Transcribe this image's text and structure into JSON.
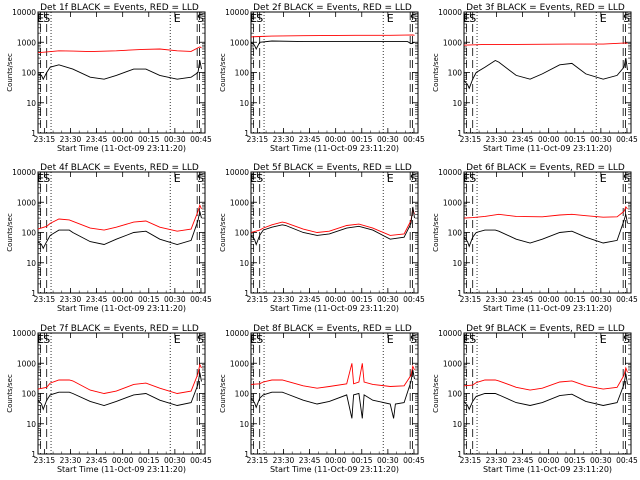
{
  "chart_data": {
    "type": "line",
    "ylabel": "Counts/sec",
    "xlabel": "Start Time (11-Oct-09 23:11:20)",
    "x_tick_labels": [
      "23:15",
      "23:30",
      "23:45",
      "00:00",
      "00:15",
      "00:30",
      "00:45"
    ],
    "x_tick_minutes": [
      3.67,
      18.67,
      33.67,
      48.67,
      63.67,
      78.67,
      93.67
    ],
    "y_scale": "log",
    "ylim": [
      1,
      10000
    ],
    "y_tick_labels": [
      "1",
      "10",
      "100",
      "1000",
      "10000"
    ],
    "series_colors": {
      "events": "#000000",
      "lld": "#ff0000"
    },
    "panels": [
      {
        "title": "Det 1f BLACK = Events, RED = LLD",
        "markers": [
          "E",
          "S",
          "E",
          "S"
        ],
        "events": [
          [
            0,
            90
          ],
          [
            2,
            80
          ],
          [
            3,
            60
          ],
          [
            5,
            100
          ],
          [
            7,
            150
          ],
          [
            12,
            180
          ],
          [
            20,
            130
          ],
          [
            30,
            70
          ],
          [
            38,
            60
          ],
          [
            45,
            80
          ],
          [
            55,
            130
          ],
          [
            62,
            130
          ],
          [
            70,
            80
          ],
          [
            80,
            60
          ],
          [
            88,
            70
          ],
          [
            92,
            100
          ],
          [
            93,
            250
          ],
          [
            94,
            130
          ]
        ],
        "lld": [
          [
            0,
            450
          ],
          [
            5,
            480
          ],
          [
            12,
            520
          ],
          [
            20,
            510
          ],
          [
            30,
            490
          ],
          [
            45,
            520
          ],
          [
            60,
            580
          ],
          [
            70,
            600
          ],
          [
            80,
            520
          ],
          [
            88,
            500
          ],
          [
            93,
            700
          ],
          [
            94,
            650
          ]
        ]
      },
      {
        "title": "Det 2f BLACK = Events, RED = LLD",
        "markers": [
          "E",
          "S",
          "E",
          "S"
        ],
        "events": [
          [
            0,
            1000
          ],
          [
            2,
            800
          ],
          [
            3,
            600
          ],
          [
            5,
            1000
          ],
          [
            12,
            1100
          ],
          [
            30,
            1050
          ],
          [
            60,
            1050
          ],
          [
            80,
            1050
          ],
          [
            90,
            1050
          ],
          [
            92,
            900
          ],
          [
            94,
            1000
          ]
        ],
        "lld": [
          [
            0,
            1500
          ],
          [
            5,
            1550
          ],
          [
            12,
            1600
          ],
          [
            30,
            1650
          ],
          [
            60,
            1700
          ],
          [
            80,
            1700
          ],
          [
            93,
            1750
          ],
          [
            94,
            1700
          ]
        ]
      },
      {
        "title": "Det 3f BLACK = Events, RED = LLD",
        "markers": [
          "E",
          "S",
          "E",
          "S"
        ],
        "events": [
          [
            0,
            55
          ],
          [
            2,
            40
          ],
          [
            3,
            30
          ],
          [
            5,
            60
          ],
          [
            7,
            100
          ],
          [
            12,
            150
          ],
          [
            18,
            250
          ],
          [
            20,
            220
          ],
          [
            30,
            80
          ],
          [
            38,
            60
          ],
          [
            45,
            90
          ],
          [
            55,
            180
          ],
          [
            62,
            200
          ],
          [
            70,
            90
          ],
          [
            80,
            60
          ],
          [
            88,
            80
          ],
          [
            92,
            150
          ],
          [
            93,
            300
          ],
          [
            94,
            120
          ]
        ],
        "lld": [
          [
            0,
            800
          ],
          [
            12,
            850
          ],
          [
            30,
            850
          ],
          [
            60,
            870
          ],
          [
            80,
            870
          ],
          [
            93,
            950
          ],
          [
            94,
            900
          ]
        ]
      },
      {
        "title": "Det 4f BLACK = Events, RED = LLD",
        "markers": [
          "E",
          "S",
          "E",
          "S"
        ],
        "events": [
          [
            0,
            50
          ],
          [
            2,
            40
          ],
          [
            3,
            30
          ],
          [
            5,
            50
          ],
          [
            7,
            80
          ],
          [
            12,
            120
          ],
          [
            18,
            120
          ],
          [
            20,
            100
          ],
          [
            30,
            50
          ],
          [
            38,
            40
          ],
          [
            45,
            60
          ],
          [
            55,
            100
          ],
          [
            62,
            110
          ],
          [
            70,
            60
          ],
          [
            80,
            40
          ],
          [
            88,
            55
          ],
          [
            92,
            250
          ],
          [
            93,
            500
          ],
          [
            94,
            300
          ]
        ],
        "lld": [
          [
            0,
            130
          ],
          [
            5,
            160
          ],
          [
            7,
            200
          ],
          [
            12,
            280
          ],
          [
            18,
            260
          ],
          [
            30,
            140
          ],
          [
            38,
            120
          ],
          [
            45,
            150
          ],
          [
            55,
            220
          ],
          [
            62,
            240
          ],
          [
            70,
            150
          ],
          [
            80,
            110
          ],
          [
            88,
            130
          ],
          [
            92,
            500
          ],
          [
            93,
            800
          ],
          [
            94,
            600
          ]
        ]
      },
      {
        "title": "Det 5f BLACK = Events, RED = LLD",
        "markers": [
          "E",
          "S",
          "E",
          "S"
        ],
        "events": [
          [
            0,
            80
          ],
          [
            2,
            60
          ],
          [
            3,
            40
          ],
          [
            5,
            80
          ],
          [
            7,
            120
          ],
          [
            12,
            150
          ],
          [
            18,
            180
          ],
          [
            20,
            170
          ],
          [
            30,
            100
          ],
          [
            38,
            80
          ],
          [
            45,
            90
          ],
          [
            55,
            140
          ],
          [
            62,
            160
          ],
          [
            70,
            120
          ],
          [
            80,
            60
          ],
          [
            88,
            70
          ],
          [
            92,
            200
          ],
          [
            93,
            700
          ],
          [
            94,
            300
          ]
        ],
        "lld": [
          [
            0,
            100
          ],
          [
            5,
            120
          ],
          [
            7,
            140
          ],
          [
            12,
            180
          ],
          [
            18,
            220
          ],
          [
            20,
            210
          ],
          [
            30,
            130
          ],
          [
            38,
            100
          ],
          [
            45,
            110
          ],
          [
            55,
            170
          ],
          [
            62,
            190
          ],
          [
            70,
            140
          ],
          [
            80,
            80
          ],
          [
            88,
            90
          ],
          [
            92,
            250
          ],
          [
            93,
            600
          ],
          [
            94,
            400
          ]
        ]
      },
      {
        "title": "Det 6f BLACK = Events, RED = LLD",
        "markers": [
          "E",
          "S",
          "E",
          "S"
        ],
        "events": [
          [
            0,
            70
          ],
          [
            2,
            50
          ],
          [
            3,
            35
          ],
          [
            5,
            70
          ],
          [
            7,
            100
          ],
          [
            12,
            120
          ],
          [
            18,
            120
          ],
          [
            20,
            110
          ],
          [
            30,
            60
          ],
          [
            38,
            45
          ],
          [
            45,
            60
          ],
          [
            55,
            100
          ],
          [
            62,
            110
          ],
          [
            70,
            70
          ],
          [
            80,
            45
          ],
          [
            88,
            55
          ],
          [
            92,
            250
          ],
          [
            93,
            400
          ],
          [
            94,
            200
          ]
        ],
        "lld": [
          [
            0,
            300
          ],
          [
            5,
            310
          ],
          [
            12,
            340
          ],
          [
            20,
            400
          ],
          [
            30,
            340
          ],
          [
            45,
            330
          ],
          [
            55,
            380
          ],
          [
            62,
            400
          ],
          [
            70,
            360
          ],
          [
            80,
            320
          ],
          [
            88,
            330
          ],
          [
            92,
            500
          ],
          [
            93,
            700
          ],
          [
            94,
            600
          ]
        ]
      },
      {
        "title": "Det 7f BLACK = Events, RED = LLD",
        "markers": [
          "E",
          "S",
          "E",
          "S"
        ],
        "events": [
          [
            0,
            60
          ],
          [
            2,
            45
          ],
          [
            3,
            30
          ],
          [
            5,
            60
          ],
          [
            7,
            90
          ],
          [
            12,
            110
          ],
          [
            18,
            110
          ],
          [
            20,
            100
          ],
          [
            30,
            55
          ],
          [
            38,
            40
          ],
          [
            45,
            55
          ],
          [
            55,
            90
          ],
          [
            62,
            100
          ],
          [
            70,
            60
          ],
          [
            80,
            40
          ],
          [
            88,
            50
          ],
          [
            92,
            200
          ],
          [
            93,
            500
          ],
          [
            94,
            250
          ]
        ],
        "lld": [
          [
            0,
            140
          ],
          [
            5,
            160
          ],
          [
            7,
            220
          ],
          [
            12,
            280
          ],
          [
            18,
            280
          ],
          [
            20,
            260
          ],
          [
            30,
            130
          ],
          [
            38,
            100
          ],
          [
            45,
            120
          ],
          [
            55,
            200
          ],
          [
            62,
            220
          ],
          [
            70,
            150
          ],
          [
            80,
            100
          ],
          [
            88,
            120
          ],
          [
            92,
            450
          ],
          [
            93,
            900
          ],
          [
            94,
            700
          ]
        ]
      },
      {
        "title": "Det 8f BLACK = Events, RED = LLD",
        "markers": [
          "E",
          "S",
          "E",
          "S"
        ],
        "events": [
          [
            0,
            70
          ],
          [
            2,
            50
          ],
          [
            3,
            35
          ],
          [
            5,
            70
          ],
          [
            7,
            90
          ],
          [
            12,
            110
          ],
          [
            18,
            110
          ],
          [
            20,
            100
          ],
          [
            30,
            60
          ],
          [
            38,
            45
          ],
          [
            45,
            55
          ],
          [
            55,
            90
          ],
          [
            58,
            15
          ],
          [
            59,
            90
          ],
          [
            62,
            100
          ],
          [
            64,
            15
          ],
          [
            65,
            90
          ],
          [
            70,
            60
          ],
          [
            80,
            45
          ],
          [
            82,
            15
          ],
          [
            83,
            45
          ],
          [
            88,
            50
          ],
          [
            92,
            250
          ],
          [
            93,
            600
          ],
          [
            94,
            300
          ]
        ],
        "lld": [
          [
            0,
            200
          ],
          [
            5,
            210
          ],
          [
            7,
            240
          ],
          [
            12,
            280
          ],
          [
            18,
            280
          ],
          [
            20,
            260
          ],
          [
            30,
            180
          ],
          [
            38,
            150
          ],
          [
            45,
            170
          ],
          [
            55,
            210
          ],
          [
            58,
            1000
          ],
          [
            59,
            210
          ],
          [
            62,
            240
          ],
          [
            64,
            1000
          ],
          [
            65,
            240
          ],
          [
            70,
            200
          ],
          [
            80,
            170
          ],
          [
            88,
            180
          ],
          [
            92,
            400
          ],
          [
            93,
            800
          ],
          [
            94,
            600
          ]
        ]
      },
      {
        "title": "Det 9f BLACK = Events, RED = LLD",
        "markers": [
          "E",
          "S",
          "E",
          "S"
        ],
        "events": [
          [
            0,
            55
          ],
          [
            2,
            40
          ],
          [
            3,
            30
          ],
          [
            5,
            55
          ],
          [
            7,
            80
          ],
          [
            12,
            100
          ],
          [
            18,
            100
          ],
          [
            20,
            90
          ],
          [
            30,
            50
          ],
          [
            38,
            40
          ],
          [
            45,
            50
          ],
          [
            55,
            85
          ],
          [
            62,
            95
          ],
          [
            70,
            55
          ],
          [
            80,
            40
          ],
          [
            88,
            50
          ],
          [
            92,
            200
          ],
          [
            93,
            450
          ],
          [
            94,
            200
          ]
        ],
        "lld": [
          [
            0,
            180
          ],
          [
            5,
            190
          ],
          [
            7,
            230
          ],
          [
            12,
            280
          ],
          [
            18,
            280
          ],
          [
            20,
            260
          ],
          [
            30,
            160
          ],
          [
            38,
            130
          ],
          [
            45,
            150
          ],
          [
            55,
            240
          ],
          [
            62,
            260
          ],
          [
            70,
            180
          ],
          [
            80,
            140
          ],
          [
            88,
            160
          ],
          [
            92,
            400
          ],
          [
            93,
            700
          ],
          [
            94,
            500
          ]
        ]
      }
    ]
  }
}
